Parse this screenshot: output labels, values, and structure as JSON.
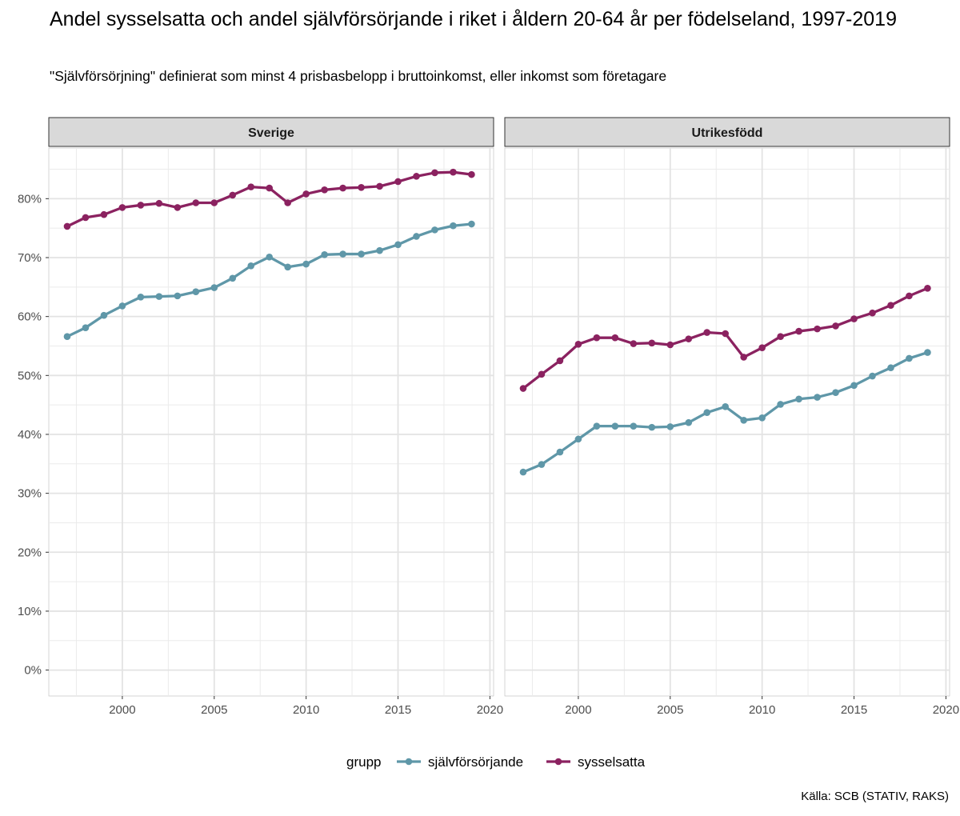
{
  "title": "Andel sysselsatta och andel självförsörjande i riket i åldern 20-64 år per födelseland, 1997-2019",
  "subtitle": "\"Självförsörjning\" definierat som minst 4 prisbasbelopp i bruttoinkomst, eller inkomst som företagare",
  "caption": "Källa: SCB (STATIV, RAKS)",
  "colors": {
    "sjalvforsorjande": "#5f97a8",
    "sysselsatta": "#8b2260"
  },
  "chart_data": {
    "type": "line",
    "x_ticks": [
      2000,
      2005,
      2010,
      2015,
      2020
    ],
    "y_ticks": [
      0,
      10,
      20,
      30,
      40,
      50,
      60,
      70,
      80
    ],
    "y_tick_labels": [
      "0%",
      "10%",
      "20%",
      "30%",
      "40%",
      "50%",
      "60%",
      "70%",
      "80%"
    ],
    "xlim": [
      1996,
      2020.2
    ],
    "ylim": [
      -4.4,
      88.6
    ],
    "legend": {
      "title": "grupp",
      "position": "bottom",
      "items": [
        "självförsörjande",
        "sysselsatta"
      ]
    },
    "x": [
      1997,
      1998,
      1999,
      2000,
      2001,
      2002,
      2003,
      2004,
      2005,
      2006,
      2007,
      2008,
      2009,
      2010,
      2011,
      2012,
      2013,
      2014,
      2015,
      2016,
      2017,
      2018,
      2019
    ],
    "panels": [
      {
        "name": "Sverige",
        "series": [
          {
            "name": "självförsörjande",
            "values": [
              56.6,
              58.1,
              60.2,
              61.8,
              63.3,
              63.4,
              63.5,
              64.2,
              64.9,
              66.5,
              68.6,
              70.1,
              68.4,
              68.9,
              70.5,
              70.6,
              70.6,
              71.2,
              72.2,
              73.6,
              74.7,
              75.4,
              75.7
            ]
          },
          {
            "name": "sysselsatta",
            "values": [
              75.3,
              76.8,
              77.3,
              78.5,
              78.9,
              79.2,
              78.5,
              79.3,
              79.3,
              80.6,
              82.0,
              81.8,
              79.3,
              80.8,
              81.5,
              81.8,
              81.9,
              82.1,
              82.9,
              83.8,
              84.4,
              84.5,
              84.1
            ]
          }
        ]
      },
      {
        "name": "Utrikesfödd",
        "series": [
          {
            "name": "självförsörjande",
            "values": [
              33.6,
              34.9,
              37.0,
              39.2,
              41.4,
              41.4,
              41.4,
              41.2,
              41.3,
              42.0,
              43.7,
              44.7,
              42.4,
              42.8,
              45.1,
              46.0,
              46.3,
              47.1,
              48.3,
              49.9,
              51.3,
              52.9,
              53.9
            ]
          },
          {
            "name": "sysselsatta",
            "values": [
              47.8,
              50.2,
              52.5,
              55.3,
              56.4,
              56.4,
              55.4,
              55.5,
              55.2,
              56.2,
              57.3,
              57.1,
              53.1,
              54.7,
              56.6,
              57.5,
              57.9,
              58.4,
              59.6,
              60.6,
              61.9,
              63.5,
              64.8
            ]
          }
        ]
      }
    ]
  }
}
